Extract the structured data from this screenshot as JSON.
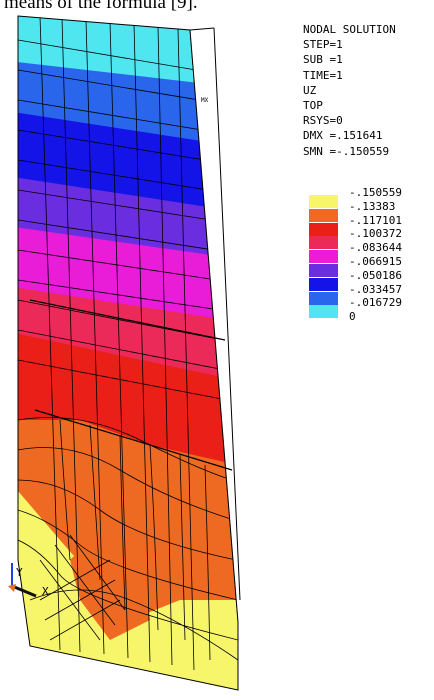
{
  "caption": "means of the formula [9].",
  "info": {
    "lines": [
      "NODAL SOLUTION",
      "STEP=1",
      "SUB =1",
      "TIME=1",
      "UZ",
      "TOP",
      "RSYS=0",
      "DMX =.151641",
      "SMN =-.150559"
    ]
  },
  "legend": [
    {
      "color": "#f7f56a",
      "value": "-.150559"
    },
    {
      "color": "#ee6a22",
      "value": "-.13383"
    },
    {
      "color": "#ea1f18",
      "value": "-.117101"
    },
    {
      "color": "#ec2a5a",
      "value": "-.100372"
    },
    {
      "color": "#e91cd8",
      "value": "-.083644"
    },
    {
      "color": "#6a2ee0",
      "value": "-.066915"
    },
    {
      "color": "#1414e8",
      "value": "-.050186"
    },
    {
      "color": "#2a66ec",
      "value": "-.033457"
    },
    {
      "color": "#4fe6f0",
      "value": "-.016729"
    },
    {
      "color": "#ffffff",
      "value": "0"
    }
  ],
  "triad": {
    "y_label": "Y",
    "x_label": "X"
  },
  "node_marker": "MX"
}
